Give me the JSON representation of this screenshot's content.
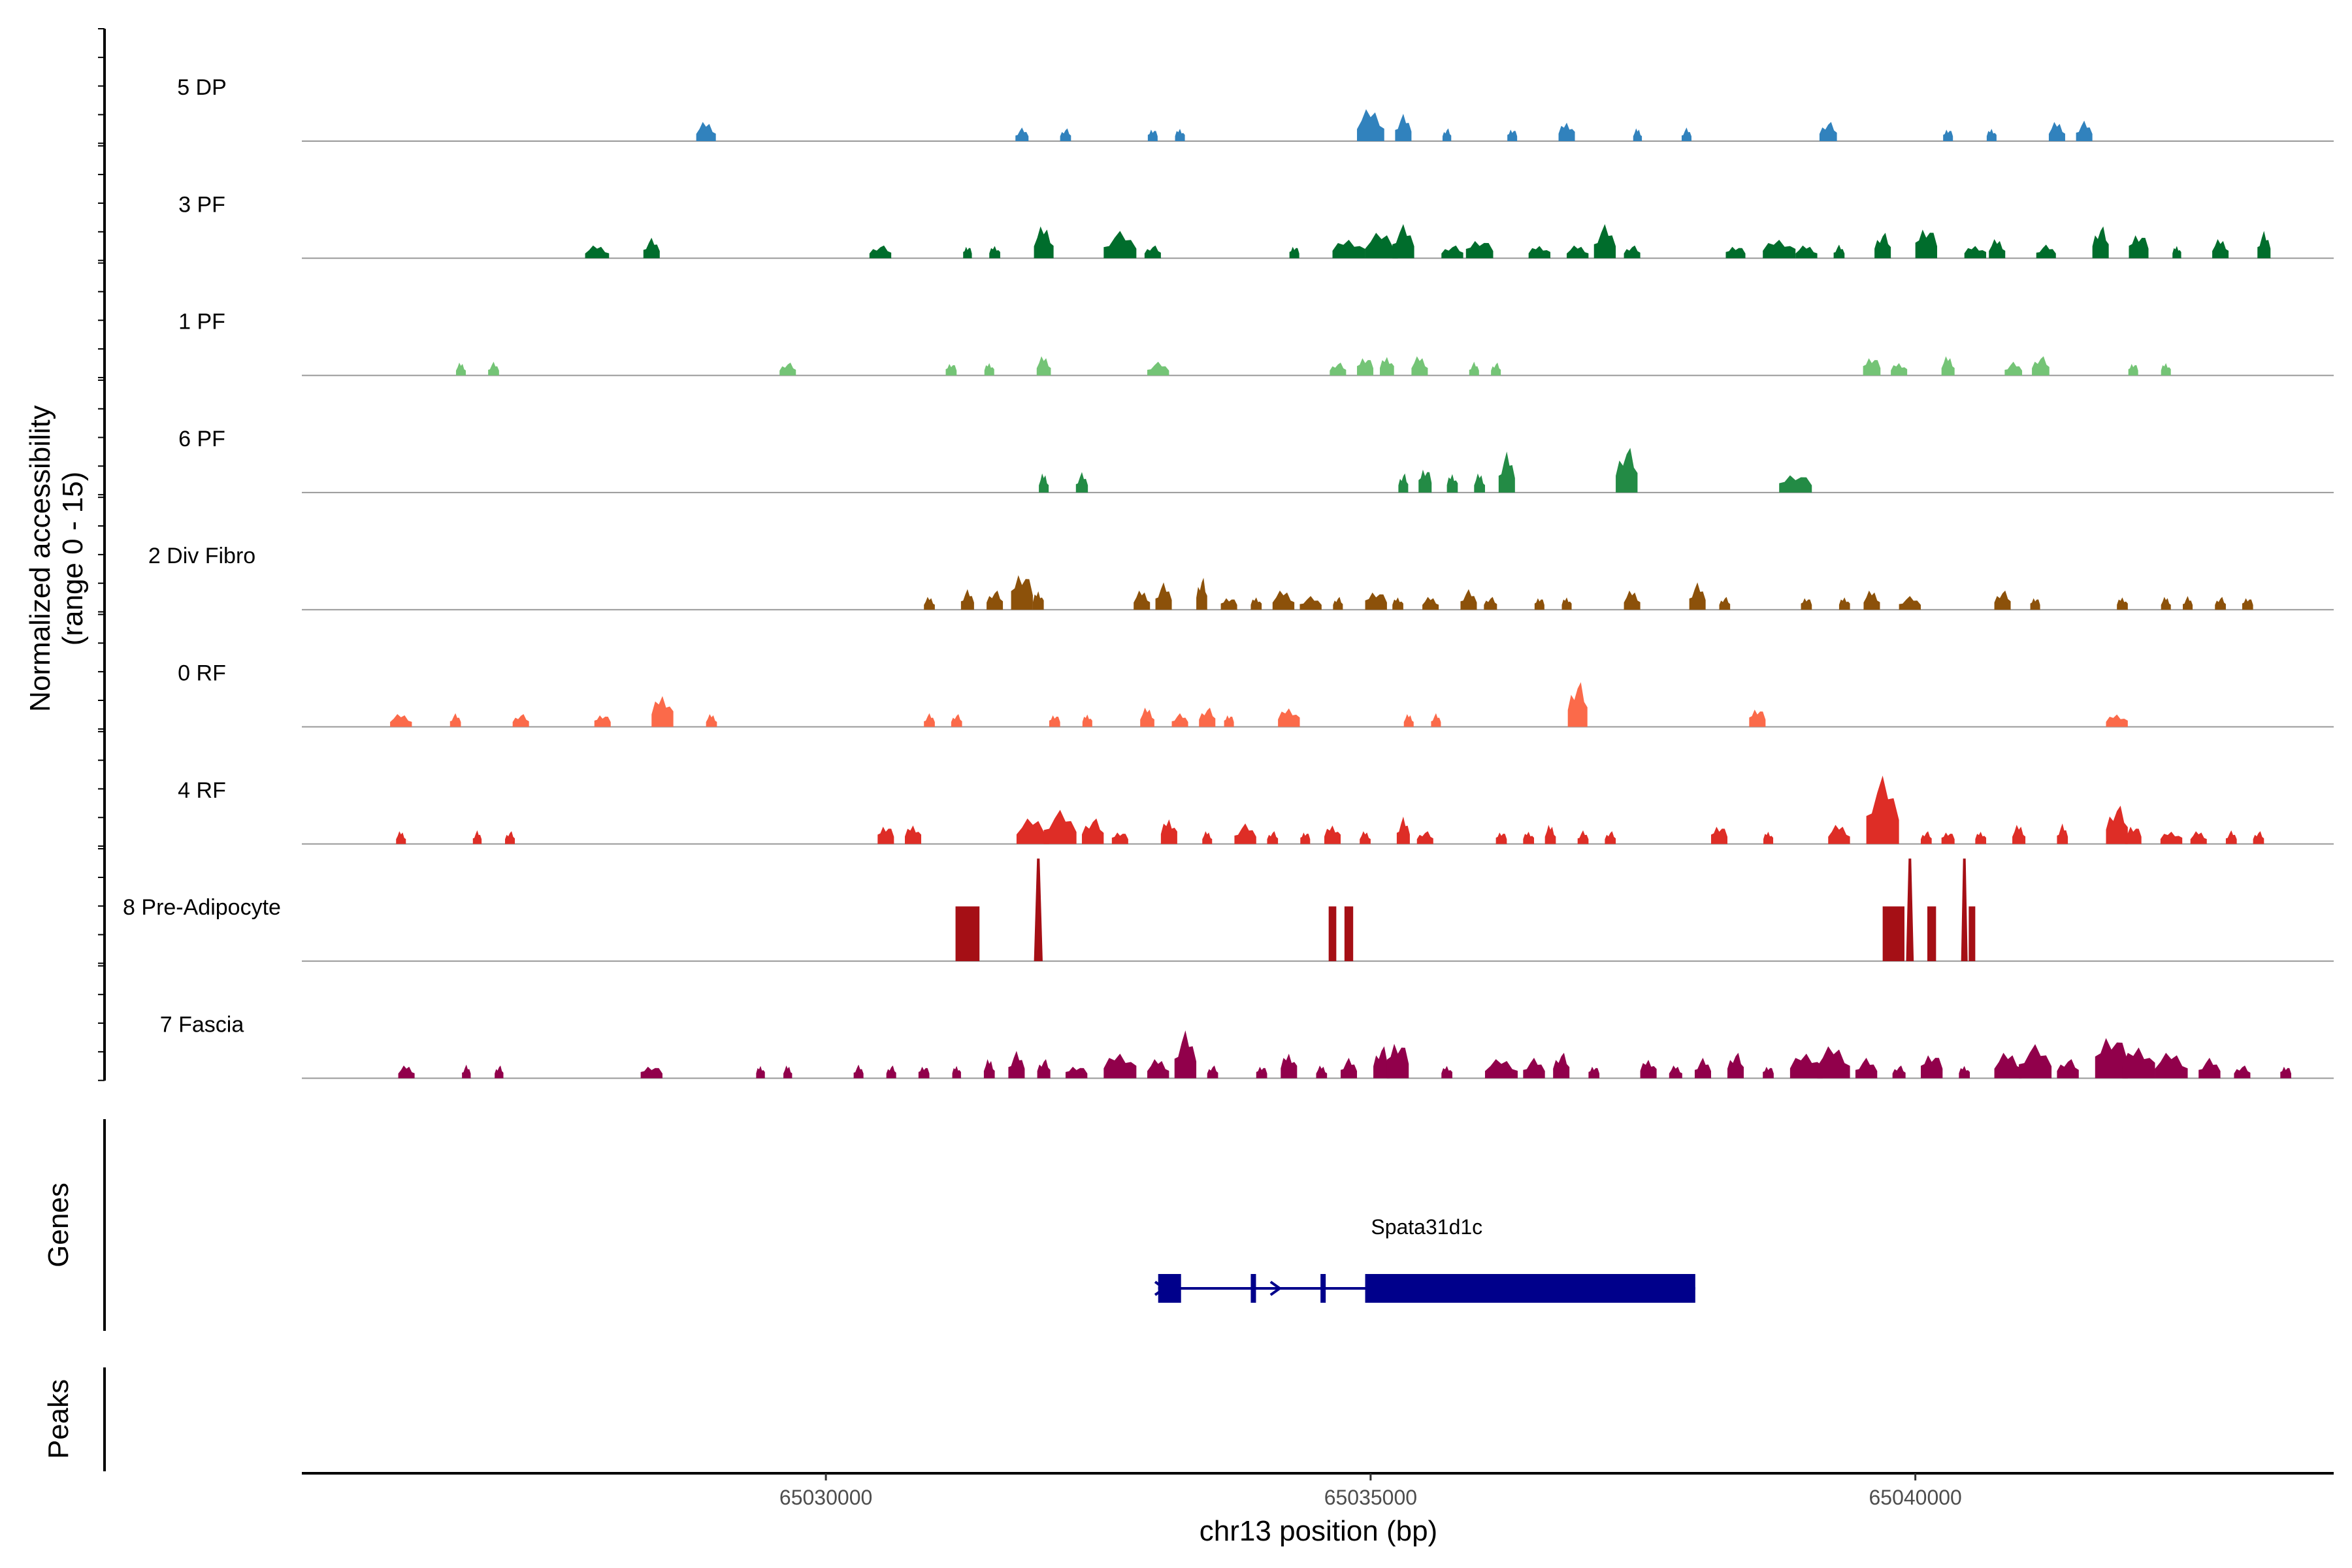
{
  "chart_data": {
    "type": "coverage",
    "xlabel": "chr13 position (bp)",
    "ylabel_line1": "Normalized accessibility",
    "ylabel_line2": "(range 0 - 15)",
    "yrange": [
      0,
      15
    ],
    "xlim": [
      65025190,
      65043840
    ],
    "xticks": [
      {
        "value": 65030000,
        "label": "65030000"
      },
      {
        "value": 65035000,
        "label": "65035000"
      },
      {
        "value": 65040000,
        "label": "65040000"
      }
    ],
    "tracks": [
      {
        "name": "5 DP",
        "color": "#3182bd",
        "peaks": [
          [
            65028900,
            180,
            3
          ],
          [
            65031800,
            120,
            2
          ],
          [
            65032200,
            100,
            2
          ],
          [
            65033000,
            90,
            2
          ],
          [
            65033250,
            90,
            2
          ],
          [
            65035000,
            250,
            5
          ],
          [
            65035300,
            150,
            4
          ],
          [
            65035700,
            80,
            2
          ],
          [
            65036300,
            90,
            2
          ],
          [
            65036800,
            150,
            3
          ],
          [
            65037450,
            80,
            2
          ],
          [
            65037900,
            90,
            2
          ],
          [
            65039200,
            160,
            3
          ],
          [
            65040300,
            90,
            2
          ],
          [
            65040700,
            90,
            2
          ],
          [
            65041300,
            150,
            3
          ],
          [
            65041550,
            150,
            3
          ]
        ]
      },
      {
        "name": "3 PF",
        "color": "#006d2c",
        "peaks": [
          [
            65027900,
            220,
            2
          ],
          [
            65028400,
            150,
            3
          ],
          [
            65030500,
            200,
            2
          ],
          [
            65031300,
            80,
            2
          ],
          [
            65031550,
            100,
            2
          ],
          [
            65032000,
            180,
            5
          ],
          [
            65032700,
            300,
            4
          ],
          [
            65033000,
            150,
            2
          ],
          [
            65034300,
            90,
            2
          ],
          [
            65034800,
            300,
            3
          ],
          [
            65035100,
            300,
            4
          ],
          [
            65035300,
            200,
            5
          ],
          [
            65035750,
            200,
            2
          ],
          [
            65036000,
            250,
            3
          ],
          [
            65036550,
            200,
            2
          ],
          [
            65036900,
            200,
            2
          ],
          [
            65037150,
            200,
            5
          ],
          [
            65037400,
            150,
            2
          ],
          [
            65038350,
            180,
            2
          ],
          [
            65038750,
            300,
            3
          ],
          [
            65039000,
            200,
            2
          ],
          [
            65039300,
            100,
            2
          ],
          [
            65039700,
            150,
            4
          ],
          [
            65040100,
            200,
            5
          ],
          [
            65040550,
            200,
            2
          ],
          [
            65040750,
            150,
            3
          ],
          [
            65041200,
            180,
            2
          ],
          [
            65041700,
            150,
            5
          ],
          [
            65042050,
            180,
            4
          ],
          [
            65042400,
            80,
            2
          ],
          [
            65042800,
            150,
            3
          ],
          [
            65043200,
            120,
            4
          ]
        ]
      },
      {
        "name": "1 PF",
        "color": "#74c476",
        "peaks": [
          [
            65026650,
            90,
            2
          ],
          [
            65026950,
            100,
            2
          ],
          [
            65029650,
            150,
            2
          ],
          [
            65031150,
            100,
            2
          ],
          [
            65031500,
            90,
            2
          ],
          [
            65032000,
            130,
            3
          ],
          [
            65033050,
            200,
            2
          ],
          [
            65034700,
            150,
            2
          ],
          [
            65034950,
            150,
            3
          ],
          [
            65035150,
            130,
            3
          ],
          [
            65035450,
            150,
            3
          ],
          [
            65035950,
            90,
            2
          ],
          [
            65036150,
            90,
            2
          ],
          [
            65039600,
            160,
            3
          ],
          [
            65039850,
            150,
            2
          ],
          [
            65040300,
            120,
            3
          ],
          [
            65040900,
            160,
            2
          ],
          [
            65041150,
            160,
            3
          ],
          [
            65042000,
            90,
            2
          ],
          [
            65042300,
            90,
            2
          ]
        ]
      },
      {
        "name": "6 PF",
        "color": "#238b45",
        "peaks": [
          [
            65032000,
            90,
            3
          ],
          [
            65032350,
            110,
            3
          ],
          [
            65035300,
            90,
            3
          ],
          [
            65035500,
            120,
            4
          ],
          [
            65035750,
            100,
            3
          ],
          [
            65036000,
            100,
            3
          ],
          [
            65036250,
            150,
            6
          ],
          [
            65037350,
            200,
            7
          ],
          [
            65038900,
            300,
            3
          ]
        ]
      },
      {
        "name": "2 Div Fibro",
        "color": "#8c510a",
        "peaks": [
          [
            65030950,
            100,
            2
          ],
          [
            65031300,
            120,
            3
          ],
          [
            65031550,
            150,
            3
          ],
          [
            65031800,
            200,
            6
          ],
          [
            65031950,
            100,
            3
          ],
          [
            65032900,
            150,
            3
          ],
          [
            65033100,
            150,
            4
          ],
          [
            65033450,
            100,
            5
          ],
          [
            65033700,
            150,
            2
          ],
          [
            65033950,
            100,
            2
          ],
          [
            65034200,
            200,
            3
          ],
          [
            65034450,
            200,
            2
          ],
          [
            65034700,
            90,
            2
          ],
          [
            65035050,
            200,
            3
          ],
          [
            65035250,
            100,
            2
          ],
          [
            65035550,
            150,
            2
          ],
          [
            65035900,
            150,
            3
          ],
          [
            65036100,
            120,
            2
          ],
          [
            65036550,
            90,
            2
          ],
          [
            65036800,
            90,
            2
          ],
          [
            65037400,
            150,
            3
          ],
          [
            65038000,
            150,
            4
          ],
          [
            65038250,
            100,
            2
          ],
          [
            65039000,
            100,
            2
          ],
          [
            65039350,
            100,
            2
          ],
          [
            65039600,
            150,
            3
          ],
          [
            65039950,
            200,
            2
          ],
          [
            65040800,
            150,
            3
          ],
          [
            65041100,
            90,
            2
          ],
          [
            65041900,
            100,
            2
          ],
          [
            65042300,
            90,
            2
          ],
          [
            65042500,
            90,
            2
          ],
          [
            65042800,
            100,
            2
          ],
          [
            65043050,
            100,
            2
          ]
        ]
      },
      {
        "name": "0 RF",
        "color": "#fb6a4a",
        "peaks": [
          [
            65026100,
            200,
            2
          ],
          [
            65026600,
            100,
            2
          ],
          [
            65027200,
            150,
            2
          ],
          [
            65027950,
            150,
            2
          ],
          [
            65028500,
            200,
            5
          ],
          [
            65028950,
            100,
            2
          ],
          [
            65030950,
            100,
            2
          ],
          [
            65031200,
            100,
            2
          ],
          [
            65032100,
            100,
            2
          ],
          [
            65032400,
            90,
            2
          ],
          [
            65032950,
            130,
            3
          ],
          [
            65033250,
            150,
            2
          ],
          [
            65033500,
            150,
            3
          ],
          [
            65033700,
            90,
            2
          ],
          [
            65034250,
            200,
            3
          ],
          [
            65035350,
            90,
            2
          ],
          [
            65035600,
            90,
            2
          ],
          [
            65036900,
            180,
            7
          ],
          [
            65038550,
            150,
            3
          ],
          [
            65041850,
            200,
            2
          ]
        ]
      },
      {
        "name": "4 RF",
        "color": "#de2d26",
        "peaks": [
          [
            65026100,
            90,
            2
          ],
          [
            65026800,
            80,
            2
          ],
          [
            65027100,
            90,
            2
          ],
          [
            65030550,
            150,
            3
          ],
          [
            65030800,
            150,
            3
          ],
          [
            65031900,
            300,
            4
          ],
          [
            65032150,
            300,
            5
          ],
          [
            65032450,
            200,
            4
          ],
          [
            65032700,
            150,
            2
          ],
          [
            65033150,
            150,
            4
          ],
          [
            65033500,
            90,
            2
          ],
          [
            65033850,
            200,
            3
          ],
          [
            65034100,
            100,
            2
          ],
          [
            65034400,
            90,
            2
          ],
          [
            65034650,
            150,
            3
          ],
          [
            65034950,
            100,
            2
          ],
          [
            65035300,
            120,
            4
          ],
          [
            65035500,
            150,
            2
          ],
          [
            65036200,
            100,
            2
          ],
          [
            65036450,
            100,
            2
          ],
          [
            65036650,
            100,
            3
          ],
          [
            65036950,
            100,
            2
          ],
          [
            65037200,
            100,
            2
          ],
          [
            65038200,
            150,
            3
          ],
          [
            65038650,
            90,
            2
          ],
          [
            65039300,
            200,
            3
          ],
          [
            65039700,
            300,
            10
          ],
          [
            65040100,
            100,
            2
          ],
          [
            65040300,
            120,
            2
          ],
          [
            65040600,
            100,
            2
          ],
          [
            65040950,
            120,
            3
          ],
          [
            65041350,
            100,
            3
          ],
          [
            65041850,
            200,
            6
          ],
          [
            65042000,
            150,
            3
          ],
          [
            65042350,
            200,
            2
          ],
          [
            65042600,
            150,
            2
          ],
          [
            65042900,
            100,
            2
          ],
          [
            65043150,
            100,
            2
          ]
        ]
      },
      {
        "name": "8 Pre-Adipocyte",
        "color": "#a50f15",
        "peaks": [
          [
            65031300,
            220,
            8,
            "box"
          ],
          [
            65031950,
            80,
            15,
            "spike"
          ],
          [
            65034650,
            70,
            8,
            "box"
          ],
          [
            65034800,
            80,
            8,
            "box"
          ],
          [
            65039800,
            200,
            8,
            "box"
          ],
          [
            65039950,
            70,
            15,
            "spike"
          ],
          [
            65040150,
            80,
            8,
            "box"
          ],
          [
            65040450,
            60,
            15,
            "spike"
          ],
          [
            65040520,
            60,
            8,
            "box"
          ]
        ]
      },
      {
        "name": "7 Fascia",
        "color": "#91004b",
        "peaks": [
          [
            65026150,
            150,
            2
          ],
          [
            65026700,
            80,
            2
          ],
          [
            65027000,
            80,
            2
          ],
          [
            65028400,
            200,
            2
          ],
          [
            65029400,
            80,
            2
          ],
          [
            65029650,
            80,
            2
          ],
          [
            65030300,
            90,
            2
          ],
          [
            65030600,
            90,
            2
          ],
          [
            65030900,
            100,
            2
          ],
          [
            65031200,
            80,
            2
          ],
          [
            65031500,
            100,
            3
          ],
          [
            65031750,
            150,
            4
          ],
          [
            65032000,
            120,
            3
          ],
          [
            65032300,
            200,
            2
          ],
          [
            65032700,
            300,
            4
          ],
          [
            65033050,
            200,
            3
          ],
          [
            65033300,
            200,
            7
          ],
          [
            65033550,
            100,
            2
          ],
          [
            65034000,
            100,
            2
          ],
          [
            65034250,
            150,
            4
          ],
          [
            65034550,
            100,
            2
          ],
          [
            65034800,
            150,
            3
          ],
          [
            65035100,
            150,
            5
          ],
          [
            65035250,
            200,
            6
          ],
          [
            65035700,
            100,
            2
          ],
          [
            65036200,
            300,
            3
          ],
          [
            65036500,
            200,
            3
          ],
          [
            65036750,
            150,
            4
          ],
          [
            65037050,
            100,
            2
          ],
          [
            65037550,
            150,
            3
          ],
          [
            65037800,
            120,
            2
          ],
          [
            65038050,
            150,
            3
          ],
          [
            65038350,
            150,
            4
          ],
          [
            65038650,
            100,
            2
          ],
          [
            65039000,
            300,
            4
          ],
          [
            65039250,
            300,
            5
          ],
          [
            65039550,
            200,
            3
          ],
          [
            65039850,
            120,
            2
          ],
          [
            65040150,
            200,
            4
          ],
          [
            65040450,
            100,
            2
          ],
          [
            65040850,
            250,
            4
          ],
          [
            65041100,
            300,
            5
          ],
          [
            65041400,
            200,
            3
          ],
          [
            65041800,
            300,
            7
          ],
          [
            65042050,
            300,
            5
          ],
          [
            65042350,
            300,
            4
          ],
          [
            65042700,
            200,
            3
          ],
          [
            65043000,
            150,
            2
          ],
          [
            65043400,
            100,
            2
          ]
        ]
      }
    ],
    "genes_label": "Genes",
    "peaks_label": "Peaks",
    "gene": {
      "name": "Spata31d1c",
      "strand": "+",
      "start": 65033050,
      "end": 65037980,
      "exons": [
        [
          65033050,
          65033260
        ],
        [
          65033900,
          65033940
        ],
        [
          65034540,
          65034580
        ],
        [
          65034950,
          65037980
        ]
      ]
    }
  }
}
